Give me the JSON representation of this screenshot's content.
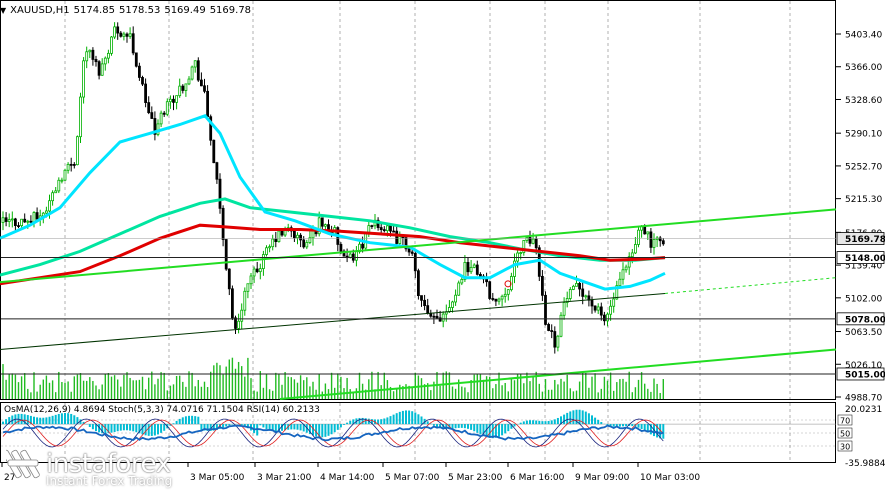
{
  "header": {
    "symbol": "XAUUSD,H1",
    "open": "5174.85",
    "high": "5178.53",
    "low": "5169.49",
    "close": "5169.78"
  },
  "price_axis": {
    "ticks": [
      "5403.40",
      "5366.00",
      "5328.60",
      "5290.10",
      "5252.70",
      "5215.30",
      "5176.80",
      "5139.40",
      "5102.00",
      "5063.50",
      "5026.10",
      "4988.70"
    ]
  },
  "price_labels": [
    {
      "text": "5169.78",
      "price": 5169.78,
      "style": "current"
    },
    {
      "text": "5148.00",
      "price": 5148.0,
      "style": "level"
    },
    {
      "text": "5078.00",
      "price": 5078.0,
      "style": "level"
    },
    {
      "text": "5015.00",
      "price": 5015.0,
      "style": "level"
    }
  ],
  "time_axis": {
    "labels": [
      "27",
      "3 Mar 05:00",
      "3 Mar 21:00",
      "4 Mar 14:00",
      "5 Mar 07:00",
      "5 Mar 23:00",
      "6 Mar 16:00",
      "9 Mar 09:00",
      "10 Mar 03:00"
    ]
  },
  "oscillator": {
    "header": "OsMA(12,26,9) 4.8694  Stoch(5,3,3) 74.0716 71.1504  RSI(14) 60.2133",
    "axis_top": "20.0231",
    "axis_bottom": "-35.9884",
    "levels": [
      "70",
      "50",
      "30"
    ]
  },
  "logo": {
    "name": "instaforex",
    "tagline": "Instant Forex Trading"
  },
  "colors": {
    "bull": "#00b000",
    "bear": "#000000",
    "ma_fast": "#00e5ff",
    "ma_mid": "#00e5a0",
    "ma_slow": "#e00000",
    "channel": "#22dd22",
    "volume": "#22bb22",
    "osma": "#00bcd4",
    "stoch_main": "#1a237e",
    "stoch_signal": "#e02020",
    "rsi": "#1565c0",
    "level_label_bg": "#ffffff"
  },
  "chart_data": {
    "type": "candlestick",
    "symbol": "XAUUSD",
    "timeframe": "H1",
    "y_range": [
      4970.0,
      5420.0
    ],
    "candles_approx": [
      {
        "t": "27",
        "o": 5195,
        "h": 5205,
        "l": 5180,
        "c": 5190
      },
      {
        "t": "2 Mar",
        "o": 5190,
        "h": 5415,
        "l": 5180,
        "c": 5385
      },
      {
        "t": "2 Mar",
        "o": 5385,
        "h": 5410,
        "l": 5280,
        "c": 5300
      },
      {
        "t": "3 Mar 05:00",
        "o": 5300,
        "h": 5375,
        "l": 5180,
        "c": 5200
      },
      {
        "t": "3 Mar 05:00",
        "o": 5200,
        "h": 5210,
        "l": 5040,
        "c": 5120
      },
      {
        "t": "3 Mar 21:00",
        "o": 5120,
        "h": 5185,
        "l": 5100,
        "c": 5170
      },
      {
        "t": "4 Mar 14:00",
        "o": 5170,
        "h": 5205,
        "l": 5130,
        "c": 5150
      },
      {
        "t": "5 Mar 07:00",
        "o": 5150,
        "h": 5190,
        "l": 5060,
        "c": 5080
      },
      {
        "t": "5 Mar 23:00",
        "o": 5080,
        "h": 5145,
        "l": 5070,
        "c": 5100
      },
      {
        "t": "6 Mar 16:00",
        "o": 5100,
        "h": 5180,
        "l": 5030,
        "c": 5060
      },
      {
        "t": "9 Mar 09:00",
        "o": 5060,
        "h": 5120,
        "l": 5065,
        "c": 5110
      },
      {
        "t": "10 Mar 03:00",
        "o": 5110,
        "h": 5190,
        "l": 5100,
        "c": 5170
      }
    ]
  }
}
